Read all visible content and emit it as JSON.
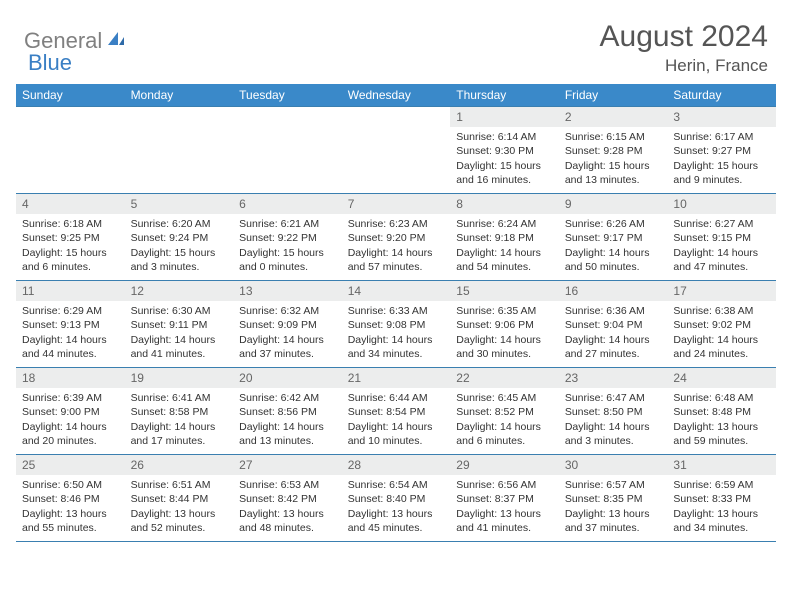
{
  "brand": {
    "general": "General",
    "blue": "Blue"
  },
  "title": {
    "month": "August 2024",
    "location": "Herin, France"
  },
  "colors": {
    "header_bg": "#3a89c9",
    "row_border": "#3a7fb0",
    "daynum_bg": "#eceded",
    "logo_gray": "#808080",
    "logo_blue": "#3a7fc4",
    "text": "#333333"
  },
  "dow": [
    "Sunday",
    "Monday",
    "Tuesday",
    "Wednesday",
    "Thursday",
    "Friday",
    "Saturday"
  ],
  "weeks": [
    [
      {
        "n": "",
        "sr": "",
        "ss": "",
        "dl1": "",
        "dl2": ""
      },
      {
        "n": "",
        "sr": "",
        "ss": "",
        "dl1": "",
        "dl2": ""
      },
      {
        "n": "",
        "sr": "",
        "ss": "",
        "dl1": "",
        "dl2": ""
      },
      {
        "n": "",
        "sr": "",
        "ss": "",
        "dl1": "",
        "dl2": ""
      },
      {
        "n": "1",
        "sr": "Sunrise: 6:14 AM",
        "ss": "Sunset: 9:30 PM",
        "dl1": "Daylight: 15 hours",
        "dl2": "and 16 minutes."
      },
      {
        "n": "2",
        "sr": "Sunrise: 6:15 AM",
        "ss": "Sunset: 9:28 PM",
        "dl1": "Daylight: 15 hours",
        "dl2": "and 13 minutes."
      },
      {
        "n": "3",
        "sr": "Sunrise: 6:17 AM",
        "ss": "Sunset: 9:27 PM",
        "dl1": "Daylight: 15 hours",
        "dl2": "and 9 minutes."
      }
    ],
    [
      {
        "n": "4",
        "sr": "Sunrise: 6:18 AM",
        "ss": "Sunset: 9:25 PM",
        "dl1": "Daylight: 15 hours",
        "dl2": "and 6 minutes."
      },
      {
        "n": "5",
        "sr": "Sunrise: 6:20 AM",
        "ss": "Sunset: 9:24 PM",
        "dl1": "Daylight: 15 hours",
        "dl2": "and 3 minutes."
      },
      {
        "n": "6",
        "sr": "Sunrise: 6:21 AM",
        "ss": "Sunset: 9:22 PM",
        "dl1": "Daylight: 15 hours",
        "dl2": "and 0 minutes."
      },
      {
        "n": "7",
        "sr": "Sunrise: 6:23 AM",
        "ss": "Sunset: 9:20 PM",
        "dl1": "Daylight: 14 hours",
        "dl2": "and 57 minutes."
      },
      {
        "n": "8",
        "sr": "Sunrise: 6:24 AM",
        "ss": "Sunset: 9:18 PM",
        "dl1": "Daylight: 14 hours",
        "dl2": "and 54 minutes."
      },
      {
        "n": "9",
        "sr": "Sunrise: 6:26 AM",
        "ss": "Sunset: 9:17 PM",
        "dl1": "Daylight: 14 hours",
        "dl2": "and 50 minutes."
      },
      {
        "n": "10",
        "sr": "Sunrise: 6:27 AM",
        "ss": "Sunset: 9:15 PM",
        "dl1": "Daylight: 14 hours",
        "dl2": "and 47 minutes."
      }
    ],
    [
      {
        "n": "11",
        "sr": "Sunrise: 6:29 AM",
        "ss": "Sunset: 9:13 PM",
        "dl1": "Daylight: 14 hours",
        "dl2": "and 44 minutes."
      },
      {
        "n": "12",
        "sr": "Sunrise: 6:30 AM",
        "ss": "Sunset: 9:11 PM",
        "dl1": "Daylight: 14 hours",
        "dl2": "and 41 minutes."
      },
      {
        "n": "13",
        "sr": "Sunrise: 6:32 AM",
        "ss": "Sunset: 9:09 PM",
        "dl1": "Daylight: 14 hours",
        "dl2": "and 37 minutes."
      },
      {
        "n": "14",
        "sr": "Sunrise: 6:33 AM",
        "ss": "Sunset: 9:08 PM",
        "dl1": "Daylight: 14 hours",
        "dl2": "and 34 minutes."
      },
      {
        "n": "15",
        "sr": "Sunrise: 6:35 AM",
        "ss": "Sunset: 9:06 PM",
        "dl1": "Daylight: 14 hours",
        "dl2": "and 30 minutes."
      },
      {
        "n": "16",
        "sr": "Sunrise: 6:36 AM",
        "ss": "Sunset: 9:04 PM",
        "dl1": "Daylight: 14 hours",
        "dl2": "and 27 minutes."
      },
      {
        "n": "17",
        "sr": "Sunrise: 6:38 AM",
        "ss": "Sunset: 9:02 PM",
        "dl1": "Daylight: 14 hours",
        "dl2": "and 24 minutes."
      }
    ],
    [
      {
        "n": "18",
        "sr": "Sunrise: 6:39 AM",
        "ss": "Sunset: 9:00 PM",
        "dl1": "Daylight: 14 hours",
        "dl2": "and 20 minutes."
      },
      {
        "n": "19",
        "sr": "Sunrise: 6:41 AM",
        "ss": "Sunset: 8:58 PM",
        "dl1": "Daylight: 14 hours",
        "dl2": "and 17 minutes."
      },
      {
        "n": "20",
        "sr": "Sunrise: 6:42 AM",
        "ss": "Sunset: 8:56 PM",
        "dl1": "Daylight: 14 hours",
        "dl2": "and 13 minutes."
      },
      {
        "n": "21",
        "sr": "Sunrise: 6:44 AM",
        "ss": "Sunset: 8:54 PM",
        "dl1": "Daylight: 14 hours",
        "dl2": "and 10 minutes."
      },
      {
        "n": "22",
        "sr": "Sunrise: 6:45 AM",
        "ss": "Sunset: 8:52 PM",
        "dl1": "Daylight: 14 hours",
        "dl2": "and 6 minutes."
      },
      {
        "n": "23",
        "sr": "Sunrise: 6:47 AM",
        "ss": "Sunset: 8:50 PM",
        "dl1": "Daylight: 14 hours",
        "dl2": "and 3 minutes."
      },
      {
        "n": "24",
        "sr": "Sunrise: 6:48 AM",
        "ss": "Sunset: 8:48 PM",
        "dl1": "Daylight: 13 hours",
        "dl2": "and 59 minutes."
      }
    ],
    [
      {
        "n": "25",
        "sr": "Sunrise: 6:50 AM",
        "ss": "Sunset: 8:46 PM",
        "dl1": "Daylight: 13 hours",
        "dl2": "and 55 minutes."
      },
      {
        "n": "26",
        "sr": "Sunrise: 6:51 AM",
        "ss": "Sunset: 8:44 PM",
        "dl1": "Daylight: 13 hours",
        "dl2": "and 52 minutes."
      },
      {
        "n": "27",
        "sr": "Sunrise: 6:53 AM",
        "ss": "Sunset: 8:42 PM",
        "dl1": "Daylight: 13 hours",
        "dl2": "and 48 minutes."
      },
      {
        "n": "28",
        "sr": "Sunrise: 6:54 AM",
        "ss": "Sunset: 8:40 PM",
        "dl1": "Daylight: 13 hours",
        "dl2": "and 45 minutes."
      },
      {
        "n": "29",
        "sr": "Sunrise: 6:56 AM",
        "ss": "Sunset: 8:37 PM",
        "dl1": "Daylight: 13 hours",
        "dl2": "and 41 minutes."
      },
      {
        "n": "30",
        "sr": "Sunrise: 6:57 AM",
        "ss": "Sunset: 8:35 PM",
        "dl1": "Daylight: 13 hours",
        "dl2": "and 37 minutes."
      },
      {
        "n": "31",
        "sr": "Sunrise: 6:59 AM",
        "ss": "Sunset: 8:33 PM",
        "dl1": "Daylight: 13 hours",
        "dl2": "and 34 minutes."
      }
    ]
  ]
}
